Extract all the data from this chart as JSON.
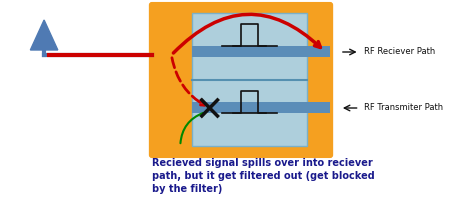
{
  "bg_color": "#ffffff",
  "orange_color": "#f5a020",
  "light_blue_color": "#aecfdc",
  "steel_blue_color": "#5b8db8",
  "antenna_color": "#4f7ab3",
  "red_color": "#cc0000",
  "green_color": "#008800",
  "black_color": "#111111",
  "dark_navy": "#1a1a8c",
  "label_rf_rx": "RF Reciever Path",
  "label_rf_tx": "RF Transmiter Path",
  "caption": "Recieved signal spills over into reciever\npath, but it get filtered out (get blocked\nby the filter)"
}
